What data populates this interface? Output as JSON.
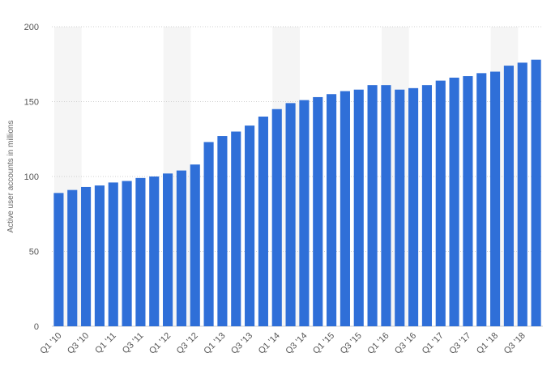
{
  "chart_data": {
    "type": "bar",
    "ylabel": "Active user accounts in millions",
    "ylim": [
      0,
      200
    ],
    "yticks": [
      0,
      50,
      100,
      150,
      200
    ],
    "grid": true,
    "bar_color": "#2f6fd8",
    "band_color": "#f5f5f5",
    "categories": [
      "Q1 '10",
      "Q2 '10",
      "Q3 '10",
      "Q4 '10",
      "Q1 '11",
      "Q2 '11",
      "Q3 '11",
      "Q4 '11",
      "Q1 '12",
      "Q2 '12",
      "Q3 '12",
      "Q4 '12",
      "Q1 '13",
      "Q2 '13",
      "Q3 '13",
      "Q4 '13",
      "Q1 '14",
      "Q2 '14",
      "Q3 '14",
      "Q4 '14",
      "Q1 '15",
      "Q2 '15",
      "Q3 '15",
      "Q4 '15",
      "Q1 '16",
      "Q2 '16",
      "Q3 '16",
      "Q4 '16",
      "Q1 '17",
      "Q2 '17",
      "Q3 '17",
      "Q4 '17",
      "Q1 '18",
      "Q2 '18",
      "Q3 '18",
      "Q4 '18"
    ],
    "tick_labels": [
      "Q1 '10",
      "Q3 '10",
      "Q1 '11",
      "Q3 '11",
      "Q1 '12",
      "Q3 '12",
      "Q1 '13",
      "Q3 '13",
      "Q1 '14",
      "Q3 '14",
      "Q1 '15",
      "Q3 '15",
      "Q1 '16",
      "Q3 '16",
      "Q1 '17",
      "Q3 '17",
      "Q1 '18",
      "Q3 '18"
    ],
    "values": [
      89,
      91,
      93,
      94,
      96,
      97,
      99,
      100,
      102,
      104,
      108,
      123,
      127,
      130,
      134,
      140,
      145,
      149,
      151,
      153,
      155,
      157,
      158,
      161,
      161,
      158,
      159,
      161,
      164,
      166,
      167,
      169,
      170,
      174,
      176,
      178
    ]
  }
}
